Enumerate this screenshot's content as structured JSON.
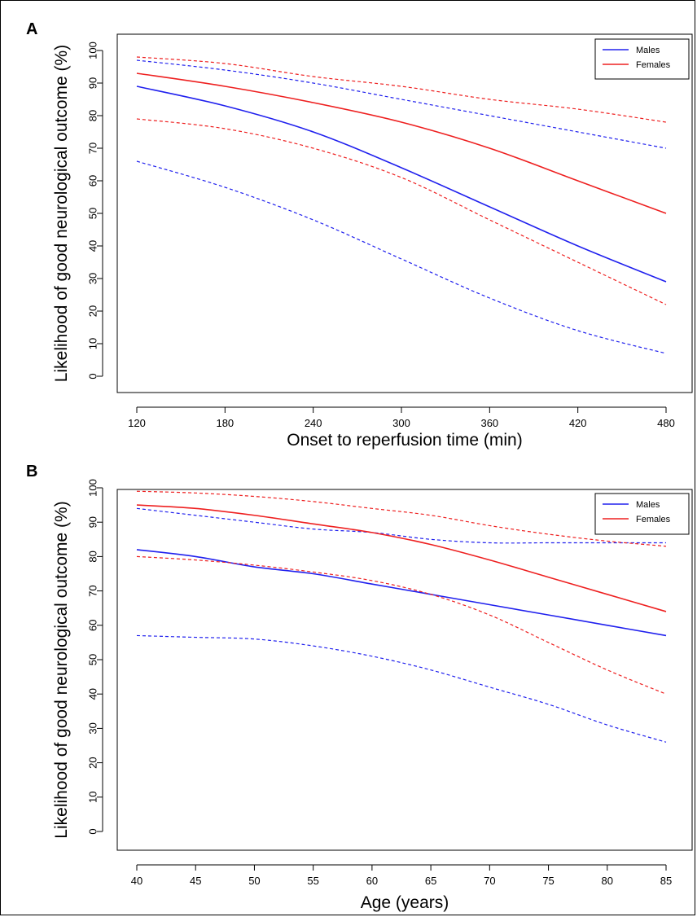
{
  "colors": {
    "males": "#2020ee",
    "females": "#ee2020"
  },
  "chart_data": [
    {
      "panel": "A",
      "type": "line",
      "xlabel": "Onset to reperfusion time (min)",
      "ylabel": "Likelihood of good neurological outcome (%)",
      "xlim": [
        120,
        480
      ],
      "ylim": [
        0,
        100
      ],
      "xticks": [
        120,
        180,
        240,
        300,
        360,
        420,
        480
      ],
      "yticks": [
        0,
        10,
        20,
        30,
        40,
        50,
        60,
        70,
        80,
        90,
        100
      ],
      "legend": {
        "position": "top-right",
        "entries": [
          "Males",
          "Females"
        ]
      },
      "x": [
        120,
        180,
        240,
        300,
        360,
        420,
        480
      ],
      "series": [
        {
          "name": "Males",
          "group": "Males",
          "style": "solid",
          "values": [
            89,
            83,
            75,
            64,
            52,
            40,
            29
          ]
        },
        {
          "group": "Males",
          "style": "dashed",
          "values": [
            97,
            94,
            90,
            85,
            80,
            75,
            70
          ]
        },
        {
          "group": "Males",
          "style": "dashed",
          "values": [
            66,
            58,
            48,
            36,
            24,
            14,
            7
          ]
        },
        {
          "name": "Females",
          "group": "Females",
          "style": "solid",
          "values": [
            93,
            89,
            84,
            78,
            70,
            60,
            50
          ]
        },
        {
          "group": "Females",
          "style": "dashed",
          "values": [
            98,
            96,
            92,
            89,
            85,
            82,
            78
          ]
        },
        {
          "group": "Females",
          "style": "dashed",
          "values": [
            79,
            76,
            70,
            61,
            48,
            35,
            22
          ]
        }
      ]
    },
    {
      "panel": "B",
      "type": "line",
      "xlabel": "Age (years)",
      "ylabel": "Likelihood of good neurological outcome (%)",
      "xlim": [
        40,
        85
      ],
      "ylim": [
        0,
        100
      ],
      "xticks": [
        40,
        45,
        50,
        55,
        60,
        65,
        70,
        75,
        80,
        85
      ],
      "yticks": [
        0,
        10,
        20,
        30,
        40,
        50,
        60,
        70,
        80,
        90,
        100
      ],
      "legend": {
        "position": "top-right",
        "entries": [
          "Males",
          "Females"
        ]
      },
      "x": [
        40,
        45,
        50,
        55,
        60,
        65,
        70,
        75,
        80,
        85
      ],
      "series": [
        {
          "name": "Males",
          "group": "Males",
          "style": "solid",
          "values": [
            82,
            80,
            77,
            75,
            72,
            69,
            66,
            63,
            60,
            57
          ]
        },
        {
          "group": "Males",
          "style": "dashed",
          "values": [
            94,
            92,
            90,
            88,
            87,
            85,
            84,
            84,
            84,
            84
          ]
        },
        {
          "group": "Males",
          "style": "dashed",
          "values": [
            57,
            56.5,
            56,
            54,
            51,
            47,
            42,
            37,
            31,
            26
          ]
        },
        {
          "name": "Females",
          "group": "Females",
          "style": "solid",
          "values": [
            95,
            94,
            92,
            89.5,
            87,
            83.5,
            79,
            74,
            69,
            64
          ]
        },
        {
          "group": "Females",
          "style": "dashed",
          "values": [
            99,
            98.5,
            97.5,
            96,
            94,
            92,
            89,
            86.5,
            84.5,
            83
          ]
        },
        {
          "group": "Females",
          "style": "dashed",
          "values": [
            80,
            79,
            77.5,
            75.5,
            73,
            69,
            63,
            55,
            47,
            40
          ]
        }
      ]
    }
  ]
}
